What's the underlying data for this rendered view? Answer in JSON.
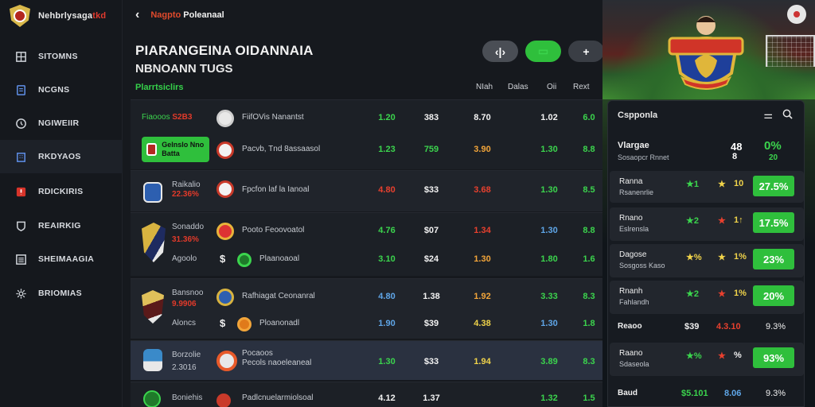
{
  "brand": {
    "name_white": "Nehbrlysaga",
    "name_red": "tkd"
  },
  "sidebar": {
    "items": [
      {
        "label": "SITOMNS",
        "icon": "grid-icon"
      },
      {
        "label": "NCGNS",
        "icon": "document-icon"
      },
      {
        "label": "NGIWEIIR",
        "icon": "clock-icon"
      },
      {
        "label": "RKDYAOS",
        "icon": "building-icon"
      },
      {
        "label": "RDICKIRIS",
        "icon": "alert-icon"
      },
      {
        "label": "REAIRKIG",
        "icon": "shield-icon"
      },
      {
        "label": "SHEIMAAGIA",
        "icon": "list-icon"
      },
      {
        "label": "BRIOMIAS",
        "icon": "settings-icon"
      }
    ]
  },
  "header": {
    "back": "‹",
    "crumb_red": "Nagpto",
    "crumb_white": "Poleanaal",
    "title1": "PIARANGEINA OIDANNAIA",
    "title2": "NBNOANN TUGS",
    "subtitle": "Plarrtsiclirs",
    "actions": [
      "‹|›",
      "▭",
      "+"
    ]
  },
  "columns": [
    "NIah",
    "Dalas",
    "Oii",
    "Rext"
  ],
  "rows": [
    {
      "team": "Fiaooos",
      "teamval": "S2B3",
      "opp": "FiifOVis Nanantst",
      "v": [
        "1.20",
        "383",
        "8.70",
        "1.02",
        "6.0"
      ],
      "c": [
        "green",
        "white",
        "white",
        "white",
        "green"
      ]
    },
    {
      "chip": "Gelnslo Nno Batta",
      "opp": "Pacvb, Tnd 8assaasol",
      "v": [
        "1.23",
        "759",
        "3.90",
        "1.30",
        "8.8"
      ],
      "c": [
        "green",
        "green",
        "orange",
        "green",
        "green"
      ]
    },
    {
      "team": "Raikalio",
      "teamval": "22.36%",
      "opp": "Fpcfon laf la Ianoal",
      "v": [
        "4.80",
        "$33",
        "3.68",
        "1.30",
        "8.5"
      ],
      "c": [
        "red",
        "white",
        "red",
        "green",
        "green"
      ]
    },
    {
      "team": "Sonaddo",
      "teamval": "31.36%",
      "opp": "Pooto Feoovoatol",
      "v": [
        "4.76",
        "$07",
        "1.34",
        "1.30",
        "8.8"
      ],
      "c": [
        "green",
        "white",
        "red",
        "blue",
        "green"
      ],
      "extra": {
        "label": "Agoolo",
        "sign": "$",
        "opp": "Plaanoaoal",
        "v": [
          "3.10",
          "$24",
          "1.30",
          "1.80",
          "1.6"
        ],
        "c": [
          "green",
          "white",
          "orange",
          "green",
          "green"
        ]
      }
    },
    {
      "team": "Bansnoo",
      "teamval": "9.9906",
      "opp": "Rafhiagat Ceonanral",
      "v": [
        "4.80",
        "1.38",
        "1.92",
        "3.33",
        "8.3"
      ],
      "c": [
        "blue",
        "white",
        "orange",
        "green",
        "green"
      ],
      "extra": {
        "label": "Aloncs",
        "sign": "$",
        "opp": "Ploanonadl",
        "v": [
          "1.90",
          "$39",
          "4.38",
          "1.30",
          "1.8"
        ],
        "c": [
          "blue",
          "white",
          "yellow",
          "blue",
          "green"
        ]
      }
    },
    {
      "team": "Borzolie",
      "teamval": "2.3016",
      "opp": "Pecols naoeleaneal",
      "v": [
        "1.30",
        "$33",
        "1.94",
        "3.89",
        "8.3"
      ],
      "c": [
        "green",
        "white",
        "yellow",
        "green",
        "green"
      ],
      "opp2": "Pocaoos"
    },
    {
      "team": "Boniehis",
      "teamval": "",
      "opp": "Padlcnuelarmiolsoal",
      "v": [
        "4.12",
        "1.37",
        "",
        "1.32",
        "1.5"
      ],
      "c": [
        "white",
        "white",
        "white",
        "green",
        "green"
      ]
    }
  ],
  "panel": {
    "title": "Cspponla",
    "icons": [
      "settings-toggle-icon",
      "search-icon"
    ],
    "stat": {
      "l1": "Vlargae",
      "l2": "Sosaopcr Rnnet",
      "num": "48",
      "num2": "8",
      "pct": "0%",
      "pct2": "20"
    },
    "cards": [
      {
        "n1": "Ranna",
        "n2": "Rsanenrlie",
        "s1": "★1",
        "s2": "★",
        "s3": "10",
        "pct": "27.5%",
        "c": [
          "green",
          "yellow"
        ]
      },
      {
        "n1": "Rnano",
        "n2": "Eslrensla",
        "s1": "★2",
        "s2": "★",
        "s3": "1↑",
        "pct": "17.5%",
        "c": [
          "green",
          "red"
        ]
      },
      {
        "n1": "Dagose",
        "n2": "Sosgoss Kaso",
        "s1": "★%",
        "s2": "★",
        "s3": "1%",
        "pct": "23%",
        "c": [
          "yellow",
          "yellow"
        ]
      },
      {
        "n1": "Rnanh",
        "n2": "Fahlandh",
        "s1": "★2",
        "s2": "★",
        "s3": "1%",
        "pct": "20%",
        "c": [
          "green",
          "red"
        ]
      }
    ],
    "row1": {
      "label": "Reaoo",
      "a": "$39",
      "b": "4.3.10",
      "c": "9.3%"
    },
    "card5": {
      "n1": "Raano",
      "n2": "Sdaseola",
      "s1": "★%",
      "s2": "★",
      "s3": "%",
      "pct": "93%"
    },
    "row2": {
      "label": "Baud",
      "a": "$5.101",
      "b": "8.06",
      "c": "9.3%"
    }
  }
}
